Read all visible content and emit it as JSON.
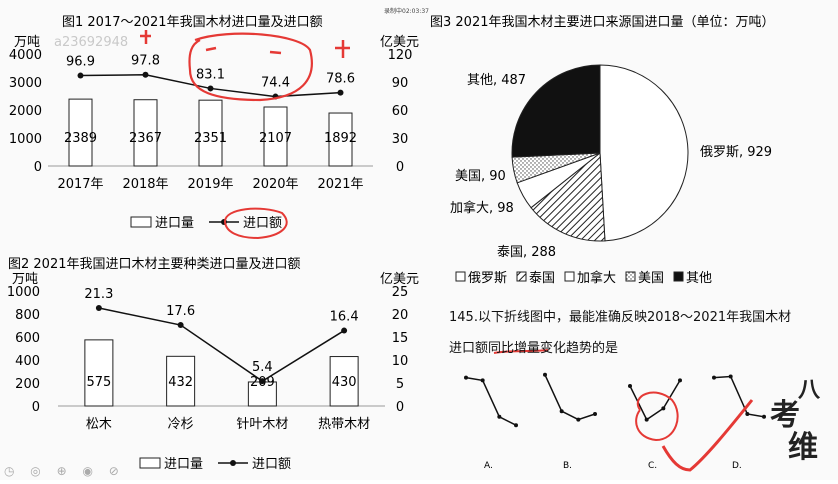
{
  "overlay": {
    "watermark": "a23692948",
    "timer": "录制中02:03:37",
    "logo": [
      "八",
      "考",
      "维"
    ]
  },
  "question": {
    "line1": "145.以下折线图中，最能准确反映2018～2021年我国木材",
    "line2": "进口额同比增量变化趋势的是"
  },
  "chart_data": [
    {
      "type": "bar+line",
      "title": "图1  2017～2021年我国木材进口量及进口额",
      "categories": [
        "2017年",
        "2018年",
        "2019年",
        "2020年",
        "2021年"
      ],
      "series": [
        {
          "name": "进口量",
          "type": "bar",
          "values": [
            2389,
            2367,
            2351,
            2107,
            1892
          ]
        },
        {
          "name": "进口额",
          "type": "line",
          "values": [
            96.9,
            97.8,
            83.1,
            74.4,
            78.6
          ]
        }
      ],
      "ylabel_left": "万吨",
      "ylabel_right": "亿美元",
      "ylim_left": [
        0,
        4000
      ],
      "ylim_right": [
        0,
        120
      ],
      "yticks_left": [
        0,
        1000,
        2000,
        3000,
        4000
      ],
      "yticks_right": [
        0,
        30,
        60,
        90,
        120
      ],
      "legend": [
        "进口量",
        "进口额"
      ],
      "legend_position": "bottom"
    },
    {
      "type": "bar+line",
      "title": "图2 2021年我国进口木材主要种类进口量及进口额",
      "categories": [
        "松木",
        "冷杉",
        "针叶木材",
        "热带木材"
      ],
      "series": [
        {
          "name": "进口量",
          "type": "bar",
          "values": [
            575,
            432,
            209,
            430
          ]
        },
        {
          "name": "进口额",
          "type": "line",
          "values": [
            21.3,
            17.6,
            5.4,
            16.4
          ]
        }
      ],
      "ylabel_left": "万吨",
      "ylabel_right": "亿美元",
      "ylim_left": [
        0,
        1000
      ],
      "ylim_right": [
        0,
        25
      ],
      "yticks_left": [
        0,
        200,
        400,
        600,
        800,
        1000
      ],
      "yticks_right": [
        0,
        5,
        10,
        15,
        20,
        25
      ],
      "legend": [
        "进口量",
        "进口额"
      ],
      "legend_position": "bottom"
    },
    {
      "type": "pie",
      "title": "图3 2021年我国木材主要进口来源国进口量（单位：万吨）",
      "slices": [
        {
          "name": "俄罗斯",
          "value": 929,
          "label": "俄罗斯, 929",
          "fill": "white"
        },
        {
          "name": "泰国",
          "value": 288,
          "label": "泰国, 288",
          "fill": "hatch"
        },
        {
          "name": "加拿大",
          "value": 98,
          "label": "加拿大, 98",
          "fill": "white"
        },
        {
          "name": "美国",
          "value": 90,
          "label": "美国, 90",
          "fill": "dots"
        },
        {
          "name": "其他",
          "value": 487,
          "label": "其他, 487",
          "fill": "black"
        }
      ],
      "legend": [
        "俄罗斯",
        "泰国",
        "加拿大",
        "美国",
        "其他"
      ],
      "legend_position": "bottom"
    }
  ],
  "options": {
    "labels": [
      "A.",
      "B.",
      "C.",
      "D."
    ],
    "trends": [
      [
        0.9,
        0.85,
        0.2,
        0.05
      ],
      [
        0.95,
        0.3,
        0.15,
        0.25
      ],
      [
        0.75,
        0.15,
        0.35,
        0.85
      ],
      [
        0.9,
        0.92,
        0.25,
        0.2
      ]
    ]
  }
}
